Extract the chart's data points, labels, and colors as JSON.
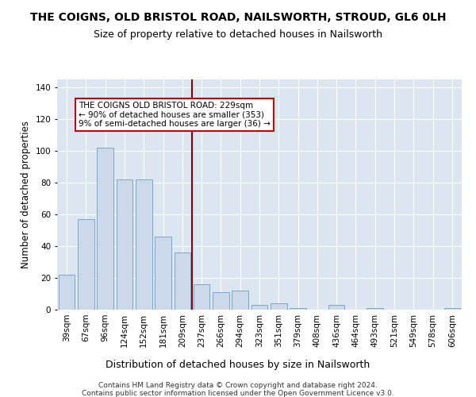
{
  "title": "THE COIGNS, OLD BRISTOL ROAD, NAILSWORTH, STROUD, GL6 0LH",
  "subtitle": "Size of property relative to detached houses in Nailsworth",
  "xlabel": "Distribution of detached houses by size in Nailsworth",
  "ylabel": "Number of detached properties",
  "categories": [
    "39sqm",
    "67sqm",
    "96sqm",
    "124sqm",
    "152sqm",
    "181sqm",
    "209sqm",
    "237sqm",
    "266sqm",
    "294sqm",
    "323sqm",
    "351sqm",
    "379sqm",
    "408sqm",
    "436sqm",
    "464sqm",
    "493sqm",
    "521sqm",
    "549sqm",
    "578sqm",
    "606sqm"
  ],
  "values": [
    22,
    57,
    102,
    82,
    82,
    46,
    36,
    16,
    11,
    12,
    3,
    4,
    1,
    0,
    3,
    0,
    1,
    0,
    0,
    0,
    1
  ],
  "bar_color": "#ccd9ea",
  "bar_edge_color": "#7ba7cc",
  "vline_color": "#8b0000",
  "annotation_text": "THE COIGNS OLD BRISTOL ROAD: 229sqm\n← 90% of detached houses are smaller (353)\n9% of semi-detached houses are larger (36) →",
  "annotation_box_color": "#ffffff",
  "annotation_box_edge": "#cc0000",
  "ylim": [
    0,
    145
  ],
  "yticks": [
    0,
    20,
    40,
    60,
    80,
    100,
    120,
    140
  ],
  "background_color": "#dce6f0",
  "footer1": "Contains HM Land Registry data © Crown copyright and database right 2024.",
  "footer2": "Contains public sector information licensed under the Open Government Licence v3.0.",
  "title_fontsize": 10,
  "subtitle_fontsize": 9,
  "tick_fontsize": 7.5,
  "ylabel_fontsize": 8.5,
  "xlabel_fontsize": 9,
  "annotation_fontsize": 7.5,
  "footer_fontsize": 6.5
}
